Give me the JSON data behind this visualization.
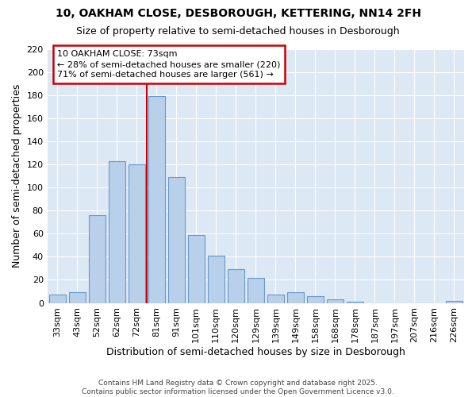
{
  "title_line1": "10, OAKHAM CLOSE, DESBOROUGH, KETTERING, NN14 2FH",
  "title_line2": "Size of property relative to semi-detached houses in Desborough",
  "xlabel": "Distribution of semi-detached houses by size in Desborough",
  "ylabel": "Number of semi-detached properties",
  "categories": [
    "33sqm",
    "43sqm",
    "52sqm",
    "62sqm",
    "72sqm",
    "81sqm",
    "91sqm",
    "101sqm",
    "110sqm",
    "120sqm",
    "129sqm",
    "139sqm",
    "149sqm",
    "158sqm",
    "168sqm",
    "178sqm",
    "187sqm",
    "197sqm",
    "207sqm",
    "216sqm",
    "226sqm"
  ],
  "values": [
    7,
    9,
    76,
    123,
    120,
    179,
    109,
    59,
    41,
    29,
    22,
    7,
    9,
    6,
    3,
    1,
    0,
    0,
    0,
    0,
    2
  ],
  "bar_color": "#b8d0ea",
  "bar_edge_color": "#6699cc",
  "property_label": "10 OAKHAM CLOSE: 73sqm",
  "smaller_pct": 28,
  "smaller_count": 220,
  "larger_pct": 71,
  "larger_count": 561,
  "redline_bar_idx": 4,
  "ylim": [
    0,
    220
  ],
  "yticks": [
    0,
    20,
    40,
    60,
    80,
    100,
    120,
    140,
    160,
    180,
    200,
    220
  ],
  "annotation_box_color": "#ffffff",
  "annotation_box_edge": "#cc0000",
  "redline_color": "#cc0000",
  "background_color": "#dde8f5",
  "footer": "Contains HM Land Registry data © Crown copyright and database right 2025.\nContains public sector information licensed under the Open Government Licence v3.0."
}
